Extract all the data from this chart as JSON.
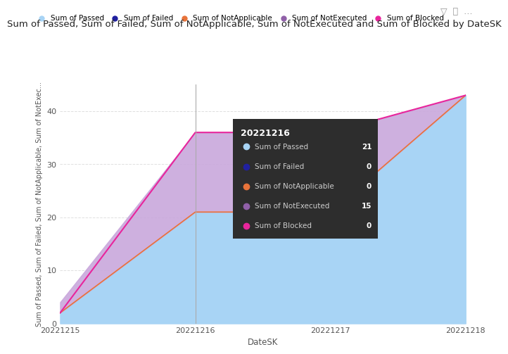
{
  "x": [
    20221215,
    20221216,
    20221217,
    20221218
  ],
  "passed": [
    2,
    21,
    21,
    43
  ],
  "not_executed": [
    2,
    15,
    15,
    0
  ],
  "blocked_line": [
    2,
    36,
    36,
    43
  ],
  "color_passed": "#a8d4f5",
  "color_not_applicable_line": "#e8733a",
  "color_not_executed": "#c9a8dc",
  "color_blocked": "#e8259c",
  "color_failed": "#2020a0",
  "color_not_applicable": "#e8733a",
  "color_not_executed_legend": "#9060a8",
  "title": "Sum of Passed, Sum of Failed, Sum of NotApplicable, Sum of NotExecuted and Sum of Blocked by DateSK",
  "xlabel": "DateSK",
  "ylabel": "Sum of Passed, Sum of Failed, Sum of NotApplicable, Sum of NotExec...",
  "ylim": [
    0,
    45
  ],
  "background_color": "#ffffff",
  "plot_bg_color": "#ffffff",
  "tooltip_label": "20221216",
  "tooltip_passed": 21,
  "tooltip_failed": 0,
  "tooltip_not_applicable": 0,
  "tooltip_not_executed": 15,
  "tooltip_blocked": 0,
  "legend_labels": [
    "Sum of Passed",
    "Sum of Failed",
    "Sum of NotApplicable",
    "Sum of NotExecuted",
    "Sum of Blocked"
  ],
  "grid_color": "#e0e0e0",
  "title_fontsize": 9.5,
  "axis_fontsize": 8.5,
  "tick_fontsize": 8
}
